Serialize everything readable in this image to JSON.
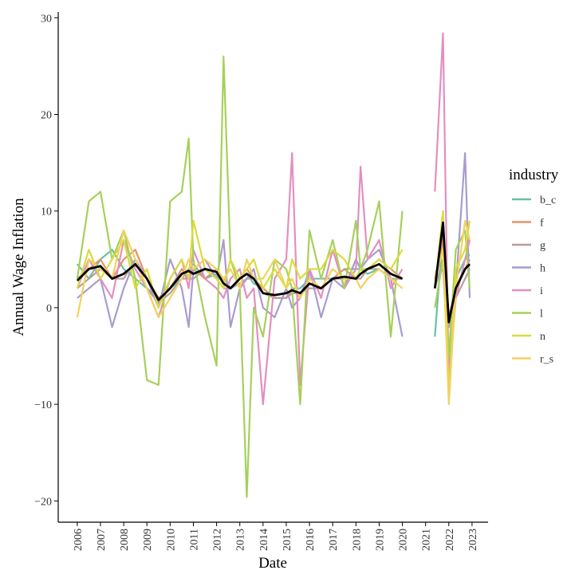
{
  "chart_data": {
    "type": "line",
    "xlabel": "Date",
    "ylabel": "Annual Wage Inflation",
    "legend_title": "industry",
    "legend": "right",
    "xlim": [
      2005.18,
      2023.69
    ],
    "ylim": [
      -22.2,
      30.6
    ],
    "xticks": [
      2006,
      2007,
      2008,
      2009,
      2010,
      2011,
      2012,
      2013,
      2014,
      2015,
      2016,
      2017,
      2018,
      2019,
      2020,
      2021,
      2022,
      2023
    ],
    "yticks": [
      {
        "value": -20,
        "label": "−20"
      },
      {
        "value": -10,
        "label": "−10"
      },
      0,
      10,
      20,
      30
    ],
    "x": [
      2006,
      2006.5,
      2007,
      2007.5,
      2008,
      2008.5,
      2009,
      2009.5,
      2010,
      2010.5,
      2010.8,
      2011,
      2011.5,
      2012,
      2012.3,
      2012.6,
      2013,
      2013.3,
      2013.6,
      2014,
      2014.5,
      2015,
      2015.25,
      2015.6,
      2016,
      2016.5,
      2017,
      2017.5,
      2018,
      2018.2,
      2018.5,
      2019,
      2019.5,
      2020,
      2020.6,
      2021.4,
      2021.75,
      2022,
      2022.3,
      2022.7,
      2022.9
    ],
    "series": [
      {
        "name": "b_c",
        "color": "#66c2a5",
        "values": [
          4.5,
          3,
          5,
          6,
          4,
          3,
          2,
          1,
          2,
          3,
          4,
          4.5,
          3,
          3.5,
          3,
          2,
          3,
          3.5,
          2.5,
          2,
          1,
          1,
          2,
          2,
          3,
          3,
          3,
          4,
          4,
          4,
          3.5,
          4,
          3,
          3,
          null,
          -3,
          8,
          -2,
          3,
          5,
          5.5
        ]
      },
      {
        "name": "f",
        "color": "#e8916a",
        "values": [
          3,
          4,
          5,
          3,
          5,
          6,
          3,
          1,
          2,
          4,
          3,
          4,
          3,
          4,
          3,
          2,
          3,
          4,
          3,
          2,
          1,
          1,
          2,
          1,
          3,
          2,
          3,
          4,
          3,
          4,
          4,
          5,
          4,
          3,
          null,
          3,
          7,
          -1,
          2,
          4,
          5
        ]
      },
      {
        "name": "g",
        "color": "#b89d99",
        "values": [
          2,
          3,
          4,
          3,
          3,
          5,
          2,
          0.5,
          1.5,
          3,
          3,
          3,
          4,
          3,
          2,
          2,
          2.5,
          3,
          3,
          1.5,
          1,
          1,
          1.5,
          1.5,
          2,
          2,
          3,
          3,
          3,
          3,
          4,
          4,
          3,
          3,
          null,
          2,
          5,
          -2,
          1,
          3,
          4
        ]
      },
      {
        "name": "h",
        "color": "#a99bd0",
        "values": [
          1,
          2,
          3,
          -2,
          2,
          5,
          3,
          0,
          5,
          2,
          -2,
          4,
          5,
          3,
          7,
          -2,
          2,
          3,
          4,
          0,
          -1,
          2,
          0,
          1,
          4,
          -1,
          3,
          2,
          5,
          4,
          5,
          6,
          3,
          -3,
          null,
          3,
          4,
          -6,
          2,
          16,
          1
        ]
      },
      {
        "name": "i",
        "color": "#e38fbf",
        "values": [
          2,
          5,
          3,
          1,
          7,
          4,
          2,
          -1,
          3,
          5,
          2,
          6,
          3,
          2,
          1,
          3,
          4,
          1,
          2,
          -10,
          3,
          5,
          16,
          -8,
          4,
          1,
          6,
          2,
          4,
          14.6,
          5,
          7,
          2,
          4,
          null,
          12,
          28.4,
          -8,
          1,
          5,
          7
        ]
      },
      {
        "name": "l",
        "color": "#a6d05a",
        "values": [
          3,
          11,
          12,
          5,
          8,
          3,
          -7.5,
          -8,
          11,
          12,
          17.5,
          5,
          -1,
          -6,
          26,
          5,
          2,
          -19.6,
          0,
          -3,
          5,
          4,
          2,
          -10,
          8,
          3,
          7,
          2,
          9,
          4,
          6,
          11,
          -3,
          10,
          null,
          0,
          5,
          -5,
          6,
          8,
          2
        ]
      },
      {
        "name": "n",
        "color": "#d9dc3c",
        "values": [
          2,
          6,
          3,
          5,
          7,
          2,
          4,
          0,
          3,
          5,
          3,
          9,
          4,
          3,
          2,
          5,
          3,
          4,
          5,
          2,
          4,
          2,
          5,
          3,
          4,
          4,
          6,
          5,
          3,
          4,
          4,
          5,
          4,
          6,
          null,
          2,
          10,
          -9,
          4,
          6,
          9
        ]
      },
      {
        "name": "r_s",
        "color": "#f2d25e",
        "values": [
          -1,
          5,
          4,
          3,
          8,
          5,
          2,
          -1,
          1,
          3,
          5,
          4,
          5,
          4,
          3,
          4,
          2,
          5,
          3,
          3,
          5,
          2,
          3,
          1,
          3,
          2,
          4,
          3,
          3,
          2,
          3,
          4,
          3,
          2,
          null,
          3,
          6,
          -10,
          2,
          9,
          7
        ]
      }
    ],
    "mean": {
      "color": "#000000",
      "values": [
        2.8,
        4,
        4.3,
        3,
        3.5,
        4.5,
        3,
        0.8,
        2,
        3.5,
        3.8,
        3.5,
        4,
        3.7,
        2.5,
        2,
        3,
        3.5,
        3,
        1.5,
        1.3,
        1.5,
        1.8,
        1.5,
        2.5,
        2,
        3,
        3.2,
        3,
        3.5,
        4,
        4.5,
        3.5,
        3,
        null,
        2,
        8.8,
        -1.5,
        2,
        4,
        4.5
      ]
    }
  }
}
